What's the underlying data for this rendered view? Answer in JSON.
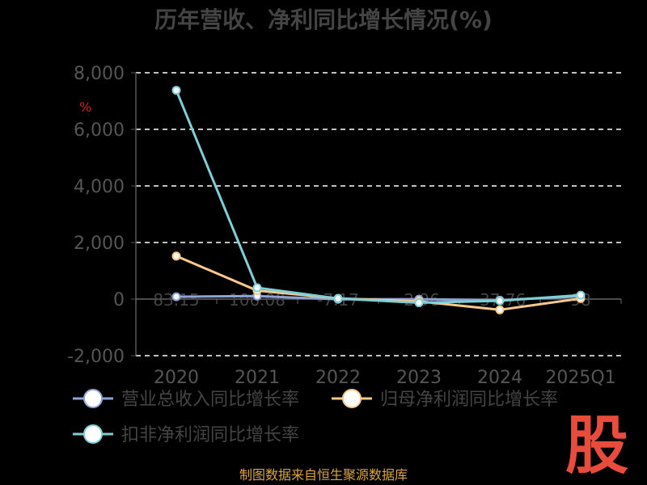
{
  "chart_data": {
    "type": "line",
    "title": "历年营收、净利同比增长情况(%)",
    "unit_label": "%",
    "categories": [
      "2020",
      "2021",
      "2022",
      "2023",
      "2024",
      "2025Q1"
    ],
    "ylim": [
      -2000,
      8000
    ],
    "yticks": [
      "8,000",
      "6,000",
      "4,000",
      "2,000",
      "0",
      "-2,000"
    ],
    "ytick_values": [
      8000,
      6000,
      4000,
      2000,
      0,
      -2000
    ],
    "grid": true,
    "legend_position": "bottom",
    "series": [
      {
        "name": "营业总收入同比增长率",
        "color": "#8fa2d4",
        "values": [
          83.15,
          106.08,
          -7.17,
          -2.96,
          -37.76,
          98
        ],
        "labels": [
          "83.15",
          "106.08",
          "-7.17",
          "-2.96",
          "-37.76",
          "98"
        ]
      },
      {
        "name": "归母净利润同比增长率",
        "color": "#f9c98a",
        "values": [
          1520,
          300,
          25,
          -80,
          -380,
          20
        ],
        "labels": []
      },
      {
        "name": "扣非净利润同比增长率",
        "color": "#7ecfd6",
        "values": [
          7380,
          400,
          20,
          -130,
          -60,
          140
        ],
        "labels": []
      }
    ]
  },
  "footer": {
    "source": "制图数据来自恒生聚源数据库",
    "logo_text": "股"
  }
}
